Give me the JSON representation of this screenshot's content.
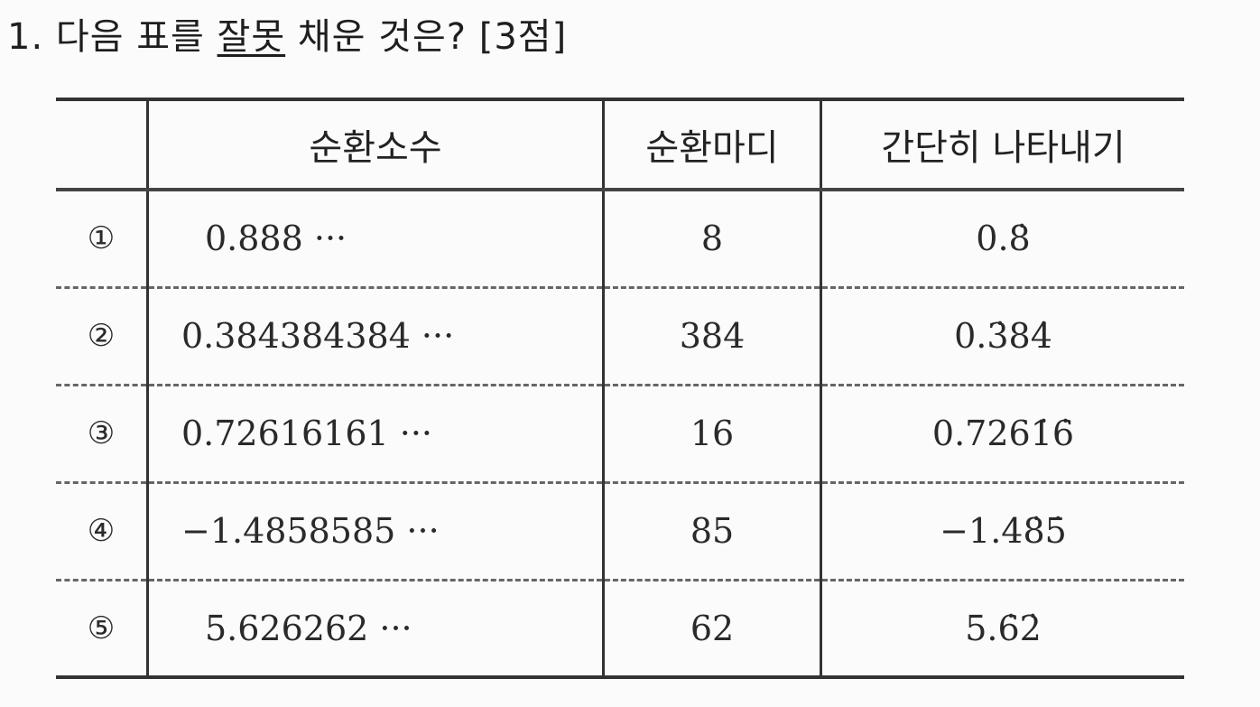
{
  "question": {
    "number": "1.",
    "text_before": "다음 표를",
    "underlined": "잘못",
    "text_after": "채운 것은?",
    "points": "[3점]"
  },
  "table": {
    "headers": [
      "",
      "순환소수",
      "순환마디",
      "간단히 나타내기"
    ],
    "rows": [
      {
        "choice": "①",
        "decimal": "0.888 ···",
        "period": "8",
        "notation": "0.8̇"
      },
      {
        "choice": "②",
        "decimal": "0.384384384 ···",
        "period": "384",
        "notation": "0.3̇84̇"
      },
      {
        "choice": "③",
        "decimal": "0.72616161 ···",
        "period": "16",
        "notation": "0.7261̇6̇"
      },
      {
        "choice": "④",
        "decimal": "−1.4858585 ···",
        "period": "85",
        "notation": "−1.48̇5̇"
      },
      {
        "choice": "⑤",
        "decimal": "5.626262 ···",
        "period": "62",
        "notation": "5.6̇2̇"
      }
    ]
  }
}
